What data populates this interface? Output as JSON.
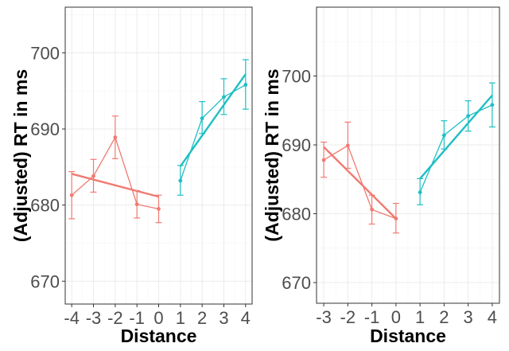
{
  "chart_data": [
    {
      "type": "line",
      "title": "",
      "xlabel": "Distance",
      "ylabel": "(Adjusted) RT in ms",
      "xlim": [
        -4.3,
        4.3
      ],
      "ylim": [
        667,
        706
      ],
      "x_ticks": [
        -4,
        -3,
        -2,
        -1,
        0,
        1,
        2,
        3,
        4
      ],
      "x_tick_labels": [
        "-4",
        "-3",
        "-2",
        "-1",
        "0",
        "1",
        "2",
        "3",
        "4"
      ],
      "y_ticks": [
        670,
        680,
        690,
        700
      ],
      "y_tick_labels": [
        "670",
        "680",
        "690",
        "700"
      ],
      "grid": true,
      "legend": "none",
      "series": [
        {
          "color": "#f07a72",
          "x": [
            -4,
            -3,
            -2,
            -1,
            0
          ],
          "y": [
            681.3,
            683.8,
            688.9,
            680.1,
            679.5
          ],
          "err_low": [
            678.2,
            681.7,
            686.1,
            678.3,
            677.7
          ],
          "err_high": [
            684.4,
            686.0,
            691.7,
            681.9,
            681.3
          ],
          "fit": [
            [
              -4,
              684.1
            ],
            [
              0,
              681.1
            ]
          ]
        },
        {
          "color": "#1fbfc4",
          "x": [
            1,
            2,
            3,
            4
          ],
          "y": [
            683.2,
            691.4,
            694.2,
            695.8
          ],
          "err_low": [
            681.3,
            689.4,
            691.9,
            692.6
          ],
          "err_high": [
            685.2,
            693.6,
            696.6,
            699.1
          ],
          "fit": [
            [
              1,
              685.1
            ],
            [
              4,
              697.2
            ]
          ]
        }
      ]
    },
    {
      "type": "line",
      "title": "",
      "xlabel": "Distance",
      "ylabel": "(Adjusted) RT in ms",
      "xlim": [
        -3.3,
        4.3
      ],
      "ylim": [
        667,
        710
      ],
      "x_ticks": [
        -3,
        -2,
        -1,
        0,
        1,
        2,
        3,
        4
      ],
      "x_tick_labels": [
        "-3",
        "-2",
        "-1",
        "0",
        "1",
        "2",
        "3",
        "4"
      ],
      "y_ticks": [
        670,
        680,
        690,
        700
      ],
      "y_tick_labels": [
        "670",
        "680",
        "690",
        "700"
      ],
      "grid": true,
      "legend": "none",
      "series": [
        {
          "color": "#f07a72",
          "x": [
            -3,
            -2,
            -1,
            0
          ],
          "y": [
            687.8,
            689.9,
            680.6,
            679.3
          ],
          "err_low": [
            685.3,
            686.6,
            678.5,
            677.2
          ],
          "err_high": [
            690.4,
            693.3,
            682.7,
            681.5
          ],
          "fit": [
            [
              -3,
              689.7
            ],
            [
              0,
              679.3
            ]
          ]
        },
        {
          "color": "#1fbfc4",
          "x": [
            1,
            2,
            3,
            4
          ],
          "y": [
            683.1,
            691.4,
            694.2,
            695.8
          ],
          "err_low": [
            681.3,
            689.4,
            692.0,
            692.6
          ],
          "err_high": [
            685.1,
            693.5,
            696.4,
            699.0
          ],
          "fit": [
            [
              1,
              685.1
            ],
            [
              4,
              697.2
            ]
          ]
        }
      ]
    }
  ]
}
